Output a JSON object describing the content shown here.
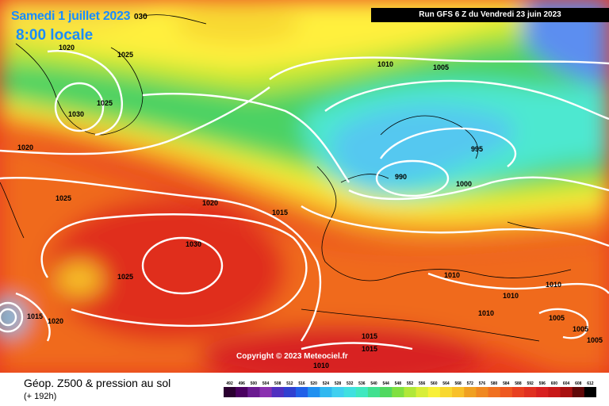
{
  "header": {
    "date_line": "Samedi 1 juillet 2023",
    "date_suffix": "030",
    "local_time": "8:00 locale",
    "run_info": "Run GFS 6 Z du Vendredi 23 juin 2023"
  },
  "map": {
    "copyright": "Copyright © 2023 Meteociel.fr",
    "isobar_labels": [
      {
        "text": "1020"
      },
      {
        "text": "1025"
      },
      {
        "text": "1025"
      },
      {
        "text": "1030"
      },
      {
        "text": "1020"
      },
      {
        "text": "1025"
      },
      {
        "text": "1020"
      },
      {
        "text": "1015"
      },
      {
        "text": "1010"
      },
      {
        "text": "1005"
      },
      {
        "text": "995"
      },
      {
        "text": "990"
      },
      {
        "text": "1000"
      },
      {
        "text": "1030"
      },
      {
        "text": "1025"
      },
      {
        "text": "1015"
      },
      {
        "text": "1020"
      },
      {
        "text": "1010"
      },
      {
        "text": "1010"
      },
      {
        "text": "1010"
      },
      {
        "text": "1010"
      },
      {
        "text": "1005"
      },
      {
        "text": "1005"
      },
      {
        "text": "1005"
      },
      {
        "text": "1015"
      },
      {
        "text": "1015"
      },
      {
        "text": "1010"
      }
    ],
    "colors": {
      "deep_blue": "#5b8ef0",
      "light_blue": "#55c8f0",
      "cyan": "#4ee8d0",
      "green": "#4cd264",
      "yellow_green": "#bce632",
      "yellow": "#fff03c",
      "orange": "#f5a020",
      "red_orange": "#f06a1e",
      "red": "#e83a1e"
    }
  },
  "footer": {
    "legend_title": "Géop. Z500 & pression au sol",
    "legend_sub": "(+ 192h)",
    "colorbar": {
      "ticks": [
        "492",
        "496",
        "500",
        "504",
        "508",
        "512",
        "516",
        "520",
        "524",
        "528",
        "532",
        "536",
        "540",
        "544",
        "548",
        "552",
        "556",
        "560",
        "564",
        "568",
        "572",
        "576",
        "580",
        "584",
        "588",
        "592",
        "596",
        "600",
        "604",
        "608",
        "612"
      ],
      "colors": [
        "#2a0030",
        "#4a0060",
        "#6a1a90",
        "#8a30b0",
        "#5030c0",
        "#3040d0",
        "#2060e8",
        "#2090f0",
        "#30b8f0",
        "#40d0f0",
        "#40e0e0",
        "#40e8c0",
        "#40e090",
        "#50d860",
        "#80e040",
        "#b0e838",
        "#d8ee38",
        "#f8f038",
        "#f8d830",
        "#f8c028",
        "#f0a020",
        "#f08820",
        "#f07020",
        "#ee5820",
        "#e84020",
        "#e03020",
        "#d82020",
        "#c81818",
        "#a81010",
        "#600808",
        "#000000"
      ]
    }
  }
}
